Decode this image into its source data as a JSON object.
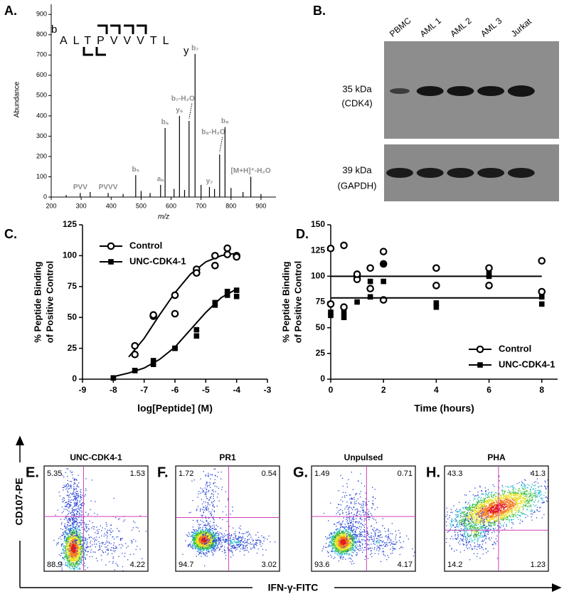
{
  "chart_data": [
    {
      "panel": "A.",
      "type": "bar",
      "xlabel": "m/z",
      "ylabel": "Abundance",
      "sequence": "ALTPVVVTL",
      "n_terminal_label": "b",
      "c_terminal_label": "y",
      "x": [
        250,
        297,
        330,
        390,
        440,
        482,
        500,
        530,
        565,
        580,
        610,
        628,
        645,
        660,
        680,
        700,
        728,
        745,
        762,
        780,
        800,
        840,
        866,
        900
      ],
      "values": [
        10,
        20,
        25,
        20,
        15,
        108,
        30,
        20,
        60,
        340,
        40,
        400,
        35,
        375,
        705,
        60,
        50,
        40,
        210,
        345,
        45,
        25,
        100,
        15
      ],
      "peak_labels": [
        null,
        "PVV",
        null,
        "PVVV",
        null,
        "b₅",
        null,
        null,
        "a₆",
        "b₆",
        null,
        "y₆",
        null,
        "b₇-H₂O",
        "b₇",
        null,
        "y₇",
        null,
        "b₈-H₂O",
        "b₈",
        null,
        null,
        "[M+H]⁺-H₂O",
        null
      ],
      "xlim": [
        200,
        950
      ],
      "xticks": [
        200,
        300,
        400,
        500,
        600,
        700,
        800,
        900
      ],
      "ylim": [
        0,
        950
      ],
      "yticks": [
        0,
        100,
        200,
        300,
        400,
        500,
        600,
        700,
        800,
        900
      ],
      "color": "#000000",
      "label_color": "#8c8c8c"
    },
    {
      "panel": "C.",
      "type": "scatter",
      "xlabel": "log[Peptide] (M)",
      "ylabel": [
        "% Peptide Binding",
        "of Positive Control"
      ],
      "xlim": [
        -9,
        -3
      ],
      "xticks": [
        -9,
        -8,
        -7,
        -6,
        -5,
        -4,
        -3
      ],
      "ylim": [
        0,
        125
      ],
      "yticks": [
        0,
        25,
        50,
        75,
        100,
        125
      ],
      "legend": "upper left",
      "series": [
        {
          "name": "Control",
          "color": "#000000",
          "marker": "open-circle",
          "x": [
            -7.3,
            -7.3,
            -6.7,
            -6.7,
            -6,
            -6,
            -5.3,
            -5.3,
            -4.7,
            -4.7,
            -4.3,
            -4.3,
            -4,
            -4
          ],
          "values": [
            27,
            20,
            51,
            52,
            68,
            53,
            89,
            86,
            100,
            92,
            106,
            101,
            100,
            99
          ],
          "fit_x": [
            -7.5,
            -7,
            -6.5,
            -6,
            -5.5,
            -5,
            -4.5,
            -4
          ],
          "fit_values": [
            18,
            33,
            52,
            70,
            85,
            95,
            100,
            102
          ]
        },
        {
          "name": "UNC-CDK4-1",
          "color": "#000000",
          "marker": "filled-square",
          "x": [
            -8,
            -8,
            -7.3,
            -7.3,
            -6.7,
            -6.7,
            -6,
            -6,
            -5.3,
            -5.3,
            -4.7,
            -4.7,
            -4.3,
            -4.3,
            -4,
            -4
          ],
          "values": [
            1,
            1,
            7,
            7,
            15,
            12,
            25,
            25,
            40,
            35,
            60,
            62,
            68,
            71,
            72,
            67
          ],
          "fit_x": [
            -8,
            -7.5,
            -7,
            -6.5,
            -6,
            -5.5,
            -5,
            -4.5,
            -4
          ],
          "fit_values": [
            2,
            5,
            9,
            16,
            26,
            40,
            54,
            66,
            73
          ]
        }
      ]
    },
    {
      "panel": "D.",
      "type": "scatter",
      "xlabel": "Time (hours)",
      "ylabel": [
        "% Peptide Binding",
        "of Positive Control"
      ],
      "xlim": [
        0,
        8.6
      ],
      "xticks": [
        0,
        2,
        4,
        6,
        8
      ],
      "ylim": [
        0,
        150
      ],
      "yticks": [
        0,
        25,
        50,
        75,
        100,
        125,
        150
      ],
      "legend": "lower right",
      "series": [
        {
          "name": "Control",
          "color": "#000000",
          "marker": "open-circle",
          "x": [
            0,
            0,
            0.5,
            0.5,
            1,
            1,
            1,
            1.5,
            1.5,
            2,
            2,
            2,
            4,
            4,
            6,
            6,
            8,
            8
          ],
          "values": [
            127,
            73,
            130,
            70,
            100,
            97,
            102,
            108,
            88,
            124,
            112,
            77,
            108,
            91,
            108,
            91,
            115,
            85
          ],
          "fit_x": [
            0,
            8
          ],
          "fit_values": [
            100,
            100
          ]
        },
        {
          "name": "UNC-CDK4-1",
          "color": "#000000",
          "marker": "filled-square",
          "x": [
            0,
            0,
            0.5,
            0.5,
            1,
            1.5,
            1.5,
            2,
            2,
            4,
            4,
            6,
            6,
            8,
            8
          ],
          "values": [
            62,
            65,
            60,
            65,
            75,
            80,
            95,
            95,
            112,
            74,
            70,
            103,
            100,
            80,
            73
          ],
          "fit_x": [
            0,
            8
          ],
          "fit_values": [
            79,
            79
          ]
        }
      ]
    }
  ],
  "blot": {
    "panel": "B.",
    "lanes": [
      "PBMC",
      "AML 1",
      "AML 2",
      "AML 3",
      "Jurkat"
    ],
    "rows": [
      {
        "size": "35 kDa",
        "protein": "(CDK4)"
      },
      {
        "size": "39 kDa",
        "protein": "(GAPDH)"
      }
    ]
  },
  "flow": {
    "ylabel": "CD107-PE",
    "xlabel": "IFN-γ-FITC",
    "plots": [
      {
        "panel": "E.",
        "title": "UNC-CDK4-1",
        "upper_left": 5.35,
        "upper_right": 1.53,
        "lower_left": 88.9,
        "lower_right": 4.22
      },
      {
        "panel": "F.",
        "title": "PR1",
        "upper_left": 1.72,
        "upper_right": 0.54,
        "lower_left": 94.7,
        "lower_right": 3.02
      },
      {
        "panel": "G.",
        "title": "Unpulsed",
        "upper_left": 1.49,
        "upper_right": 0.71,
        "lower_left": 93.6,
        "lower_right": 4.17
      },
      {
        "panel": "H.",
        "title": "PHA",
        "upper_left": 43.3,
        "upper_right": 41.3,
        "lower_left": 14.2,
        "lower_right": 1.23
      }
    ]
  }
}
